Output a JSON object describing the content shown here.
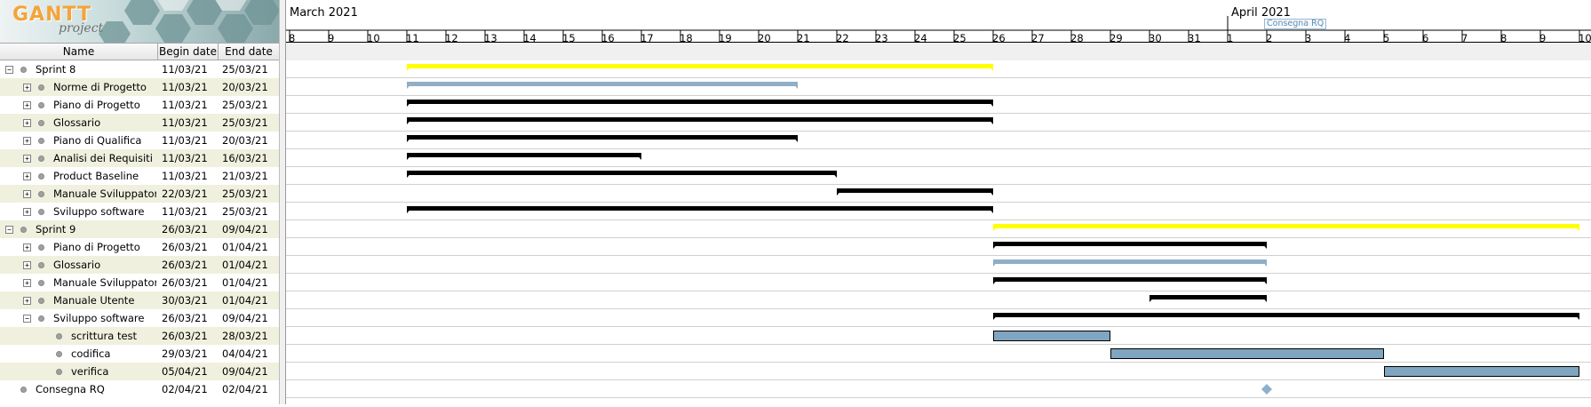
{
  "logo": {
    "brand": "GANTT",
    "sub": "project"
  },
  "columns": {
    "name": "Name",
    "begin": "Begin date",
    "end": "End date"
  },
  "timeline": {
    "months": [
      {
        "label": "March 2021",
        "day_index": 0
      },
      {
        "label": "April 2021",
        "day_index": 24
      }
    ],
    "days": [
      "8",
      "9",
      "10",
      "11",
      "12",
      "13",
      "14",
      "15",
      "16",
      "17",
      "18",
      "19",
      "20",
      "21",
      "22",
      "23",
      "24",
      "25",
      "26",
      "27",
      "28",
      "29",
      "30",
      "31",
      "1",
      "2",
      "3",
      "4",
      "5",
      "6",
      "7",
      "8",
      "9",
      "10"
    ],
    "start_date": "2021-03-08",
    "milestone_header_label": "Consegna RQ"
  },
  "colors": {
    "summary": "#ffff00",
    "task": "#000000",
    "completed": "#90aec6",
    "subtask": "#7fa5c0",
    "milestone": "#8fb0cc",
    "grid": "#d0d0d0",
    "alt_row": "#f0f0de"
  },
  "tasks": [
    {
      "name": "Sprint 8",
      "begin": "11/03/21",
      "end": "25/03/21",
      "level": 0,
      "expander": "−",
      "bar": "summary",
      "s": 3,
      "e": 18
    },
    {
      "name": "Norme di Progetto",
      "begin": "11/03/21",
      "end": "20/03/21",
      "level": 1,
      "expander": "+",
      "bar": "completed-summary",
      "s": 3,
      "e": 13
    },
    {
      "name": "Piano di Progetto",
      "begin": "11/03/21",
      "end": "25/03/21",
      "level": 1,
      "expander": "+",
      "bar": "task-summary",
      "s": 3,
      "e": 18
    },
    {
      "name": "Glossario",
      "begin": "11/03/21",
      "end": "25/03/21",
      "level": 1,
      "expander": "+",
      "bar": "task-summary",
      "s": 3,
      "e": 18
    },
    {
      "name": "Piano di Qualifica",
      "begin": "11/03/21",
      "end": "20/03/21",
      "level": 1,
      "expander": "+",
      "bar": "task-summary",
      "s": 3,
      "e": 13
    },
    {
      "name": "Analisi dei Requisiti",
      "begin": "11/03/21",
      "end": "16/03/21",
      "level": 1,
      "expander": "+",
      "bar": "task-summary",
      "s": 3,
      "e": 9
    },
    {
      "name": "Product Baseline",
      "begin": "11/03/21",
      "end": "21/03/21",
      "level": 1,
      "expander": "+",
      "bar": "task-summary",
      "s": 3,
      "e": 14
    },
    {
      "name": "Manuale Sviluppatore",
      "begin": "22/03/21",
      "end": "25/03/21",
      "level": 1,
      "expander": "+",
      "bar": "task-summary",
      "s": 14,
      "e": 18
    },
    {
      "name": "Sviluppo software",
      "begin": "11/03/21",
      "end": "25/03/21",
      "level": 1,
      "expander": "+",
      "bar": "task-summary",
      "s": 3,
      "e": 18
    },
    {
      "name": "Sprint 9",
      "begin": "26/03/21",
      "end": "09/04/21",
      "level": 0,
      "expander": "−",
      "bar": "summary",
      "s": 18,
      "e": 33
    },
    {
      "name": "Piano di Progetto",
      "begin": "26/03/21",
      "end": "01/04/21",
      "level": 1,
      "expander": "+",
      "bar": "task-summary",
      "s": 18,
      "e": 25
    },
    {
      "name": "Glossario",
      "begin": "26/03/21",
      "end": "01/04/21",
      "level": 1,
      "expander": "+",
      "bar": "completed-summary",
      "s": 18,
      "e": 25
    },
    {
      "name": "Manuale Sviluppatore",
      "begin": "26/03/21",
      "end": "01/04/21",
      "level": 1,
      "expander": "+",
      "bar": "task-summary",
      "s": 18,
      "e": 25
    },
    {
      "name": "Manuale Utente",
      "begin": "30/03/21",
      "end": "01/04/21",
      "level": 1,
      "expander": "+",
      "bar": "task-summary",
      "s": 22,
      "e": 25
    },
    {
      "name": "Sviluppo software",
      "begin": "26/03/21",
      "end": "09/04/21",
      "level": 1,
      "expander": "−",
      "bar": "task-summary",
      "s": 18,
      "e": 33
    },
    {
      "name": "scrittura test",
      "begin": "26/03/21",
      "end": "28/03/21",
      "level": 2,
      "expander": "",
      "bar": "subtask",
      "s": 18,
      "e": 21
    },
    {
      "name": "codifica",
      "begin": "29/03/21",
      "end": "04/04/21",
      "level": 2,
      "expander": "",
      "bar": "subtask",
      "s": 21,
      "e": 28
    },
    {
      "name": "verifica",
      "begin": "05/04/21",
      "end": "09/04/21",
      "level": 2,
      "expander": "",
      "bar": "subtask",
      "s": 28,
      "e": 33
    },
    {
      "name": "Consegna RQ",
      "begin": "02/04/21",
      "end": "02/04/21",
      "level": 0,
      "expander": "",
      "bar": "milestone",
      "s": 25,
      "e": 25
    }
  ]
}
